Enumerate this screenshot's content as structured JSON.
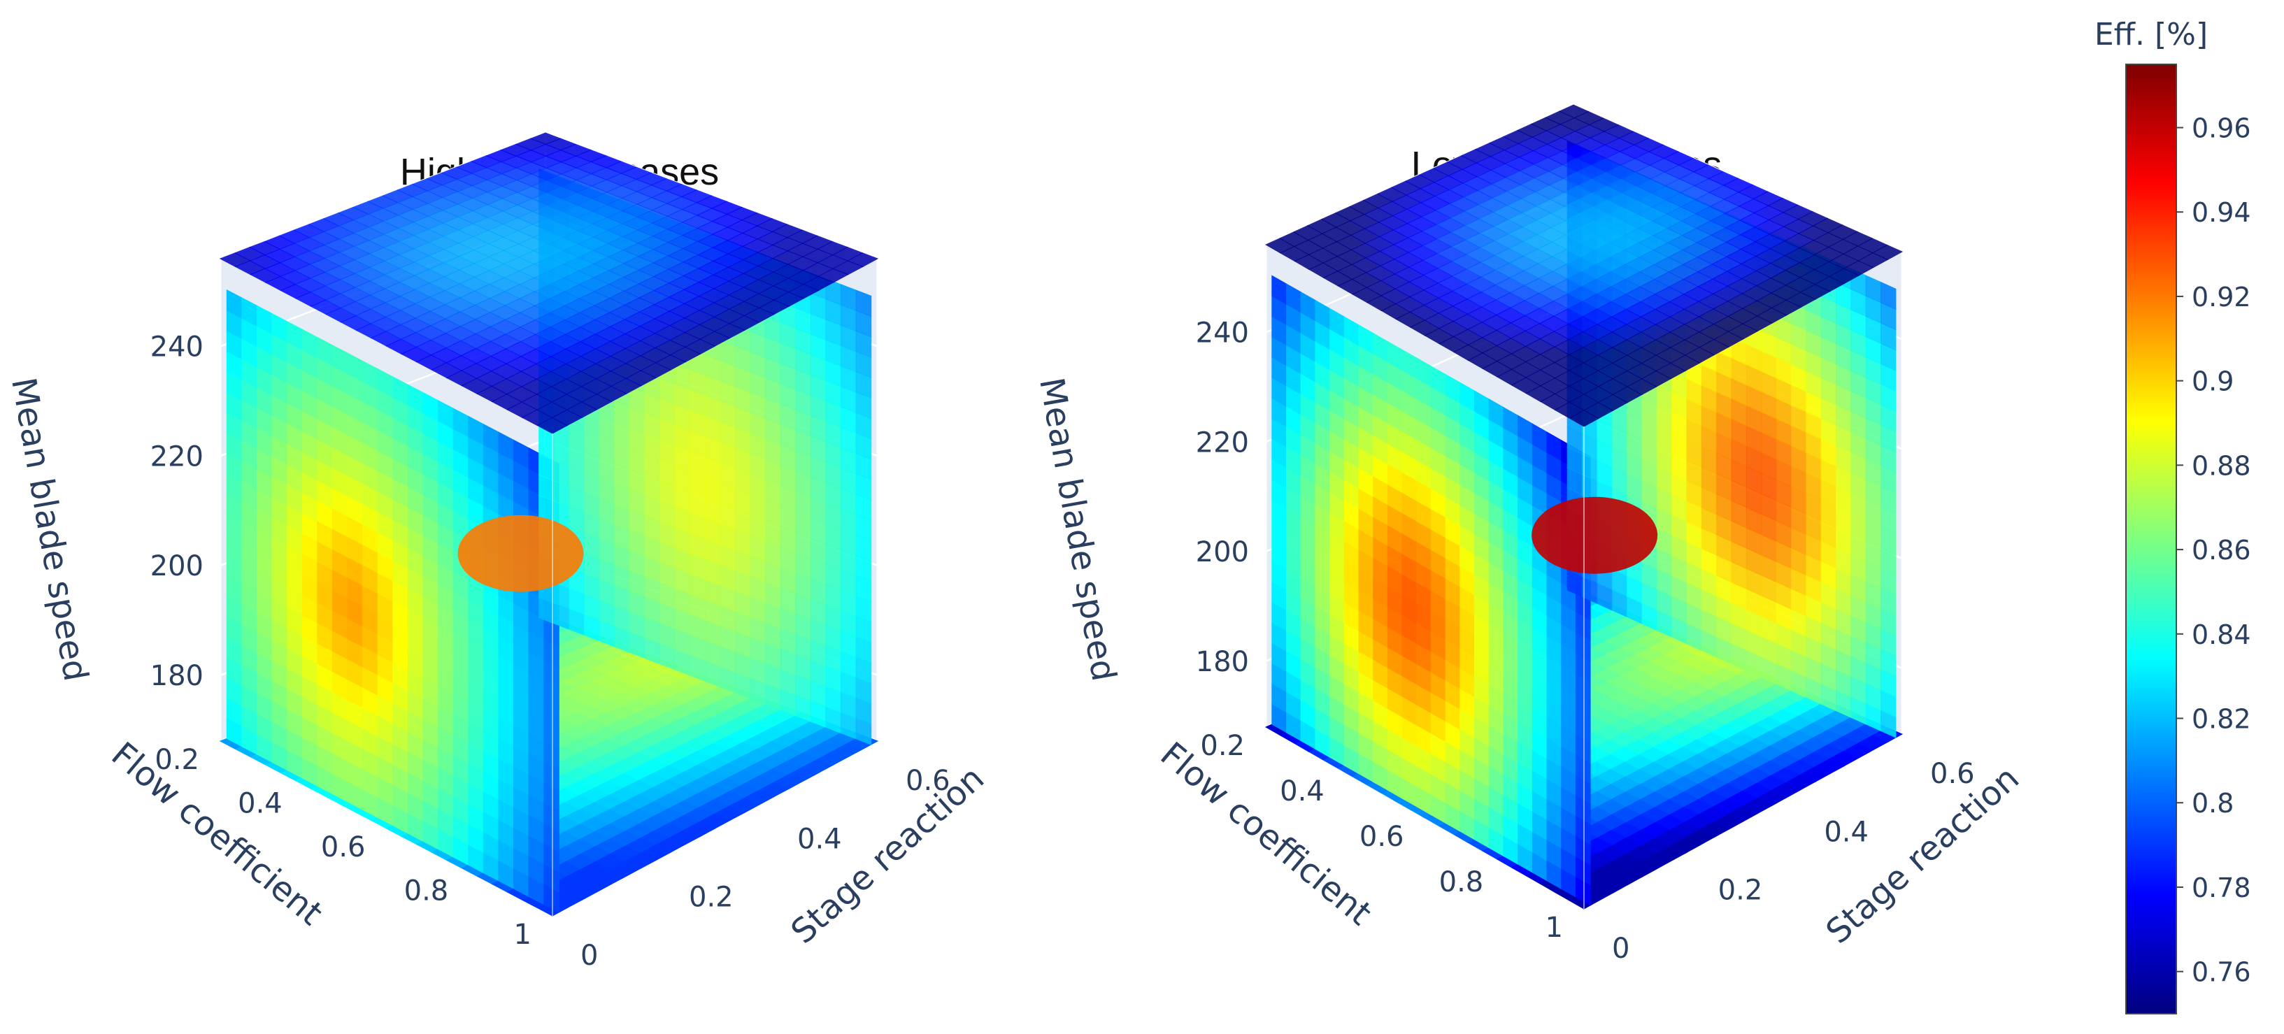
{
  "chart_data": {
    "type": "3d-isosurface",
    "colorscale": "jet",
    "colorbar": {
      "title": "Eff. [%]",
      "range": [
        0.75,
        0.975
      ],
      "tick_values": [
        0.76,
        0.78,
        0.8,
        0.82,
        0.84,
        0.86,
        0.88,
        0.9,
        0.92,
        0.94,
        0.96
      ],
      "tick_labels": [
        "0.76",
        "0.78",
        "0.8",
        "0.82",
        "0.84",
        "0.86",
        "0.88",
        "0.9",
        "0.92",
        "0.94",
        "0.96"
      ]
    },
    "panels": [
      {
        "title": "High loading cases",
        "x_axis": {
          "label": "Flow coefficient",
          "range": [
            0.2,
            1.0
          ],
          "ticks": [
            "0.2",
            "0.4",
            "0.6",
            "0.8",
            "1"
          ]
        },
        "y_axis": {
          "label": "Stage reaction",
          "range": [
            0,
            0.6
          ],
          "ticks": [
            "0",
            "0.2",
            "0.4",
            "0.6"
          ]
        },
        "z_axis": {
          "label": "Mean blade speed",
          "range": [
            170,
            250
          ],
          "ticks": [
            "180",
            "200",
            "220",
            "240"
          ]
        },
        "efficiency_range": [
          0.79,
          0.92
        ],
        "peak": {
          "flow_coefficient": 0.5,
          "stage_reaction": 0.3,
          "blade_speed": 205,
          "efficiency": 0.92
        }
      },
      {
        "title": "Low loading cases",
        "x_axis": {
          "label": "Flow coefficient",
          "range": [
            0.2,
            1.0
          ],
          "ticks": [
            "0.2",
            "0.4",
            "0.6",
            "0.8",
            "1"
          ]
        },
        "y_axis": {
          "label": "Stage reaction",
          "range": [
            0,
            0.6
          ],
          "ticks": [
            "0",
            "0.2",
            "0.4",
            "0.6"
          ]
        },
        "z_axis": {
          "label": "Mean blade speed",
          "range": [
            170,
            250
          ],
          "ticks": [
            "180",
            "200",
            "220",
            "240"
          ]
        },
        "efficiency_range": [
          0.76,
          0.96
        ],
        "peak": {
          "flow_coefficient": 0.55,
          "stage_reaction": 0.35,
          "blade_speed": 205,
          "efficiency": 0.96
        }
      }
    ]
  }
}
